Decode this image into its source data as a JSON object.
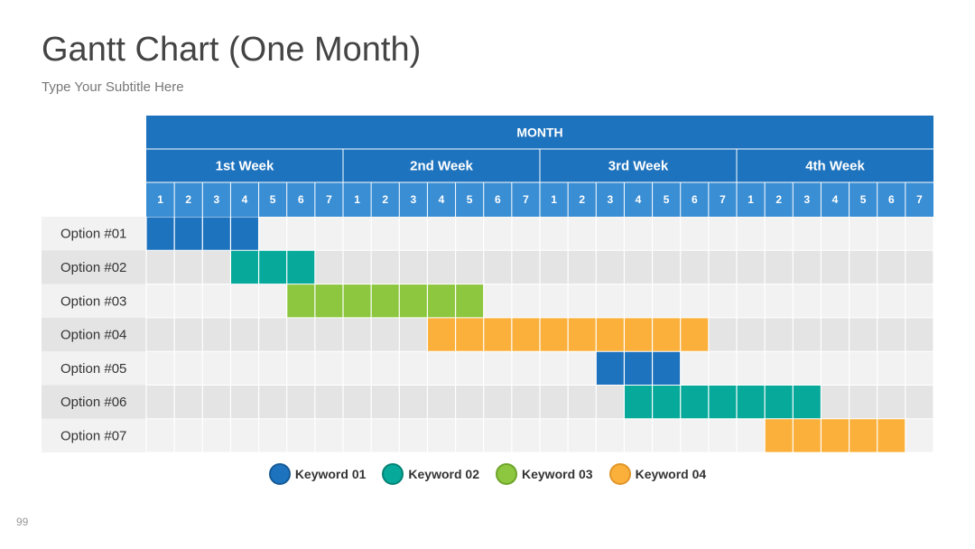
{
  "title": "Gantt Chart (One Month)",
  "subtitle": "Type Your Subtitle Here",
  "page_number": "99",
  "colors": {
    "header": "#1e73be",
    "day_header": "#3a8ed4",
    "row_light": "#f2f2f2",
    "row_dark": "#e4e4e4",
    "keyword_01": "#1e73be",
    "keyword_02": "#06a99a",
    "keyword_03": "#8dc63f",
    "keyword_04": "#fbb03b"
  },
  "legend": [
    {
      "label": "Keyword 01",
      "color": "#1e73be",
      "border": "#155a96"
    },
    {
      "label": "Keyword 02",
      "color": "#06a99a",
      "border": "#048276"
    },
    {
      "label": "Keyword 03",
      "color": "#8dc63f",
      "border": "#6ea42a"
    },
    {
      "label": "Keyword 04",
      "color": "#fbb03b",
      "border": "#e0962a"
    }
  ],
  "chart_data": {
    "type": "gantt",
    "header": "MONTH",
    "weeks": [
      "1st Week",
      "2nd Week",
      "3rd Week",
      "4th Week"
    ],
    "days": [
      "1",
      "2",
      "3",
      "4",
      "5",
      "6",
      "7",
      "1",
      "2",
      "3",
      "4",
      "5",
      "6",
      "7",
      "1",
      "2",
      "3",
      "4",
      "5",
      "6",
      "7",
      "1",
      "2",
      "3",
      "4",
      "5",
      "6",
      "7"
    ],
    "tasks": [
      {
        "label": "Option #01",
        "start_day": 1,
        "end_day": 4,
        "keyword": "Keyword 01"
      },
      {
        "label": "Option #02",
        "start_day": 4,
        "end_day": 6,
        "keyword": "Keyword 02"
      },
      {
        "label": "Option #03",
        "start_day": 6,
        "end_day": 12,
        "keyword": "Keyword 03"
      },
      {
        "label": "Option #04",
        "start_day": 11,
        "end_day": 20,
        "keyword": "Keyword 04"
      },
      {
        "label": "Option #05",
        "start_day": 17,
        "end_day": 19,
        "keyword": "Keyword 01"
      },
      {
        "label": "Option #06",
        "start_day": 18,
        "end_day": 24,
        "keyword": "Keyword 02"
      },
      {
        "label": "Option #07",
        "start_day": 23,
        "end_day": 27,
        "keyword": "Keyword 04"
      }
    ]
  }
}
